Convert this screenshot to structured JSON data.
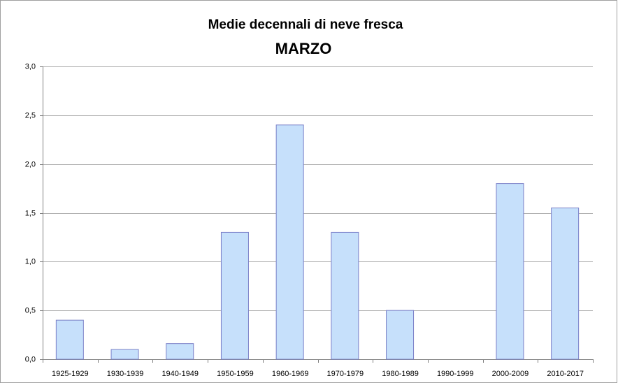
{
  "chart_data": {
    "type": "bar",
    "title": "Medie decennali di neve fresca",
    "subtitle": "MARZO",
    "categories": [
      "1925-1929",
      "1930-1939",
      "1940-1949",
      "1950-1959",
      "1960-1969",
      "1970-1979",
      "1980-1989",
      "1990-1999",
      "2000-2009",
      "2010-2017"
    ],
    "values": [
      0.4,
      0.1,
      0.16,
      1.3,
      2.4,
      1.3,
      0.5,
      0,
      1.8,
      1.55
    ],
    "color": "#c6e0fb",
    "edgecolor": "#7a80c8",
    "ylim": [
      0,
      3
    ],
    "yticks": [
      {
        "value": 0,
        "label": "0,0"
      },
      {
        "value": 0.5,
        "label": "0,5"
      },
      {
        "value": 1,
        "label": "1,0"
      },
      {
        "value": 1.5,
        "label": "1,5"
      },
      {
        "value": 2,
        "label": "2,0"
      },
      {
        "value": 2.5,
        "label": "2,5"
      },
      {
        "value": 3,
        "label": "3,0"
      }
    ],
    "grid": true
  }
}
